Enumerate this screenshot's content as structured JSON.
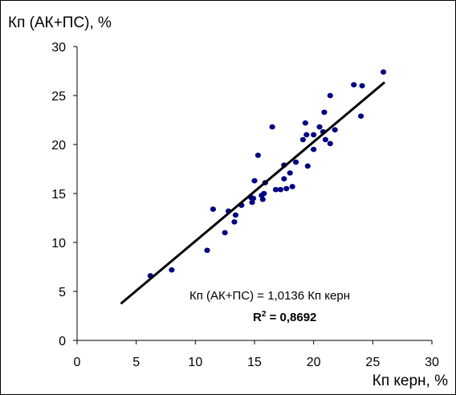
{
  "chart_data": {
    "type": "scatter",
    "ylabel": "Кп (АК+ПС), %",
    "xlabel": "Кп керн, %",
    "xlim": [
      0,
      30
    ],
    "ylim": [
      0,
      30
    ],
    "xticks": [
      "0",
      "5",
      "10",
      "15",
      "20",
      "25",
      "30"
    ],
    "yticks": [
      "0",
      "5",
      "10",
      "15",
      "20",
      "25",
      "30"
    ],
    "grid": false,
    "legend": "none",
    "marker_color": "#000080",
    "line_color": "#000000",
    "trendline": {
      "x": [
        3.7,
        26
      ],
      "y": [
        3.75,
        26.35
      ]
    },
    "annotation": {
      "equation": "Кп (АК+ПС) = 1,0136 Кп керн",
      "r2_prefix": "R",
      "r2_sup": "2",
      "r2_value": " = 0,8692"
    },
    "series": [
      {
        "points": [
          [
            6.2,
            6.6
          ],
          [
            8.0,
            7.2
          ],
          [
            11.0,
            9.2
          ],
          [
            12.5,
            11.0
          ],
          [
            11.5,
            13.4
          ],
          [
            12.8,
            13.2
          ],
          [
            13.3,
            12.1
          ],
          [
            13.4,
            12.8
          ],
          [
            13.9,
            13.8
          ],
          [
            14.8,
            14.1
          ],
          [
            14.9,
            14.5
          ],
          [
            14.7,
            14.6
          ],
          [
            15.0,
            16.3
          ],
          [
            15.3,
            18.9
          ],
          [
            15.6,
            14.8
          ],
          [
            15.7,
            14.4
          ],
          [
            15.8,
            15.0
          ],
          [
            15.9,
            16.1
          ],
          [
            16.5,
            21.8
          ],
          [
            16.8,
            15.4
          ],
          [
            17.2,
            15.4
          ],
          [
            17.5,
            16.5
          ],
          [
            17.5,
            17.9
          ],
          [
            17.7,
            15.5
          ],
          [
            18.0,
            17.1
          ],
          [
            18.2,
            15.7
          ],
          [
            18.5,
            18.2
          ],
          [
            19.1,
            20.5
          ],
          [
            19.3,
            22.2
          ],
          [
            19.4,
            21.0
          ],
          [
            19.5,
            17.8
          ],
          [
            20.0,
            21.0
          ],
          [
            20.0,
            19.5
          ],
          [
            20.5,
            21.8
          ],
          [
            20.8,
            21.3
          ],
          [
            20.9,
            23.3
          ],
          [
            21.0,
            20.5
          ],
          [
            21.4,
            25.0
          ],
          [
            21.4,
            20.1
          ],
          [
            21.8,
            21.5
          ],
          [
            23.4,
            26.1
          ],
          [
            24.0,
            22.9
          ],
          [
            24.1,
            26.0
          ],
          [
            25.9,
            27.4
          ]
        ]
      }
    ]
  }
}
